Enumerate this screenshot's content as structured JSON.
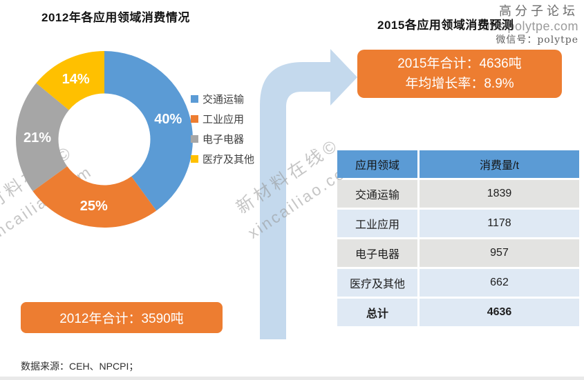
{
  "left_panel": {
    "title": "2012年各应用领域消费情况",
    "total_box_label": "2012年合计：3590吨"
  },
  "right_panel": {
    "title": "2015各应用领域消费预测",
    "box_line1": "2015年合计：4636吨",
    "box_line2": "年均增长率：8.9%",
    "table": {
      "headers": {
        "area": "应用领域",
        "value": "消费量/t"
      },
      "rows": [
        {
          "area": "交通运输",
          "value": "1839"
        },
        {
          "area": "工业应用",
          "value": "1178"
        },
        {
          "area": "电子电器",
          "value": "957"
        },
        {
          "area": "医疗及其他",
          "value": "662"
        }
      ],
      "total": {
        "area": "总计",
        "value": "4636"
      }
    }
  },
  "legend": {
    "items": [
      {
        "label": "交通运输"
      },
      {
        "label": "工业应用"
      },
      {
        "label": "电子电器"
      },
      {
        "label": "医疗及其他"
      }
    ]
  },
  "watermarks": {
    "site_line1": "新材料在线©",
    "site_line2": "xincailiao.com",
    "forum_line1": "高分子论坛",
    "forum_line2": "bbs.polytpe.com",
    "forum_line3": "微信号：polytpe"
  },
  "footer": {
    "source": "数据来源：CEH、NPCPI；"
  },
  "colors": {
    "accent_orange": "#ED7D31",
    "table_header_blue": "#5B9BD5",
    "row_gray": "#E3E3E1",
    "row_blue": "#DFE9F4",
    "arrow_blue": "#C4D9ED"
  },
  "chart_data": [
    {
      "type": "pie",
      "subtype": "donut",
      "title": "2012年各应用领域消费情况",
      "labels": [
        "交通运输",
        "工业应用",
        "电子电器",
        "医疗及其他"
      ],
      "values": [
        40,
        25,
        21,
        14
      ],
      "unit": "%",
      "colors": [
        "#5B9BD5",
        "#ED7D31",
        "#A6A6A6",
        "#FFC000"
      ],
      "total_label": "2012年合计：3590吨",
      "total_tons": 3590,
      "start_angle_deg": 0,
      "direction": "clockwise",
      "legend_position": "right"
    },
    {
      "type": "table",
      "title": "2015各应用领域消费预测",
      "columns": [
        "应用领域",
        "消费量/t"
      ],
      "rows": [
        [
          "交通运输",
          1839
        ],
        [
          "工业应用",
          1178
        ],
        [
          "电子电器",
          957
        ],
        [
          "医疗及其他",
          662
        ],
        [
          "总计",
          4636
        ]
      ],
      "total_tons": 4636,
      "annual_growth_rate": "8.9%"
    }
  ]
}
